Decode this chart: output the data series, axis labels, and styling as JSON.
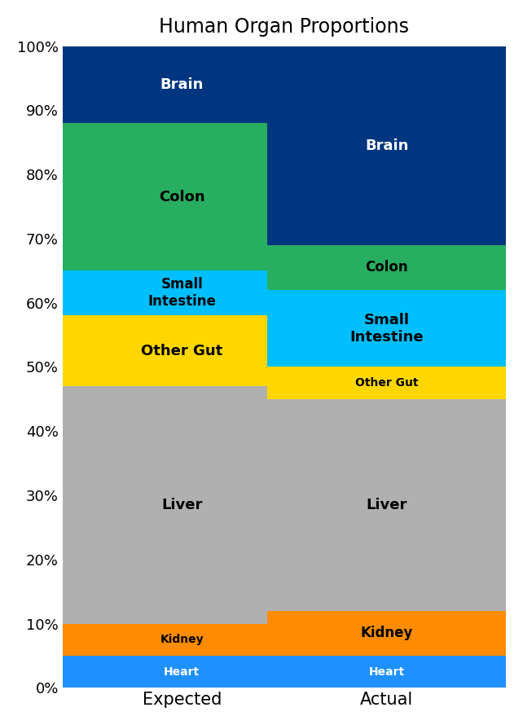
{
  "title": "Human Organ Proportions",
  "categories": [
    "Expected",
    "Actual"
  ],
  "organ_labels": [
    "Heart",
    "Kidney",
    "Liver",
    "Other Gut",
    "Small\nIntestine",
    "Colon",
    "Brain"
  ],
  "colors": [
    "#1E90FF",
    "#FF8C00",
    "#B0B0B0",
    "#FFD700",
    "#00BFFF",
    "#27AE60",
    "#003580"
  ],
  "expected": [
    5,
    5,
    37,
    11,
    7,
    23,
    12
  ],
  "actual": [
    5,
    7,
    33,
    5,
    12,
    7,
    31
  ],
  "bar_width": 0.7,
  "ylim": [
    0,
    100
  ],
  "yticks": [
    0,
    10,
    20,
    30,
    40,
    50,
    60,
    70,
    80,
    90,
    100
  ],
  "ytick_labels": [
    "0%",
    "10%",
    "20%",
    "30%",
    "40%",
    "50%",
    "60%",
    "70%",
    "80%",
    "90%",
    "100%"
  ],
  "title_fontsize": 17,
  "label_fontsize": 13,
  "tick_fontsize": 13,
  "background_color": "#FFFFFF",
  "text_colors": [
    "white",
    "black",
    "black",
    "black",
    "black",
    "black",
    "white"
  ]
}
